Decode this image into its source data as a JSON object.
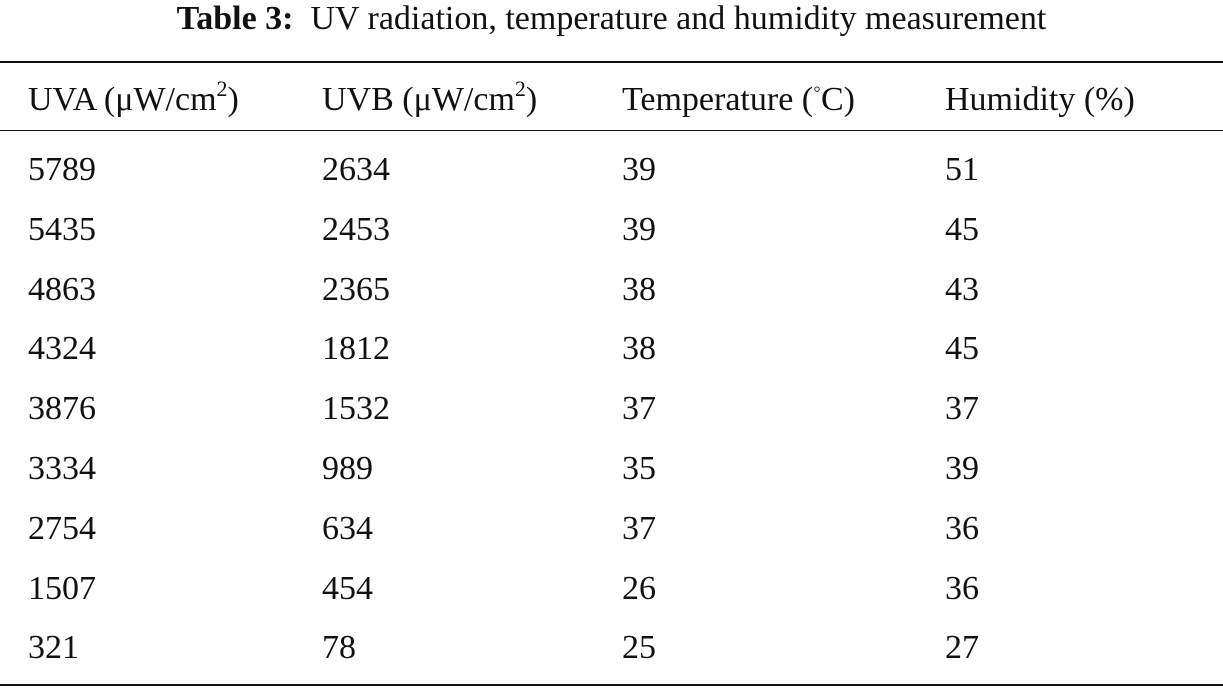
{
  "table": {
    "label": "Table 3:",
    "caption": "UV radiation, temperature and humidity measurement",
    "headers": [
      {
        "main": "UVA (μW/cm",
        "sup": "2",
        "end": ")"
      },
      {
        "main": "UVB (μW/cm",
        "sup": "2",
        "end": ")"
      },
      {
        "main": "Temperature (",
        "sup": "◦",
        "end": "C)"
      },
      {
        "main": "Humidity (%)"
      }
    ],
    "rows": [
      [
        5789,
        2634,
        39,
        51
      ],
      [
        5435,
        2453,
        39,
        45
      ],
      [
        4863,
        2365,
        38,
        43
      ],
      [
        4324,
        1812,
        38,
        45
      ],
      [
        3876,
        1532,
        37,
        37
      ],
      [
        3334,
        989,
        35,
        39
      ],
      [
        2754,
        634,
        37,
        36
      ],
      [
        1507,
        454,
        26,
        36
      ],
      [
        321,
        78,
        25,
        27
      ]
    ]
  }
}
